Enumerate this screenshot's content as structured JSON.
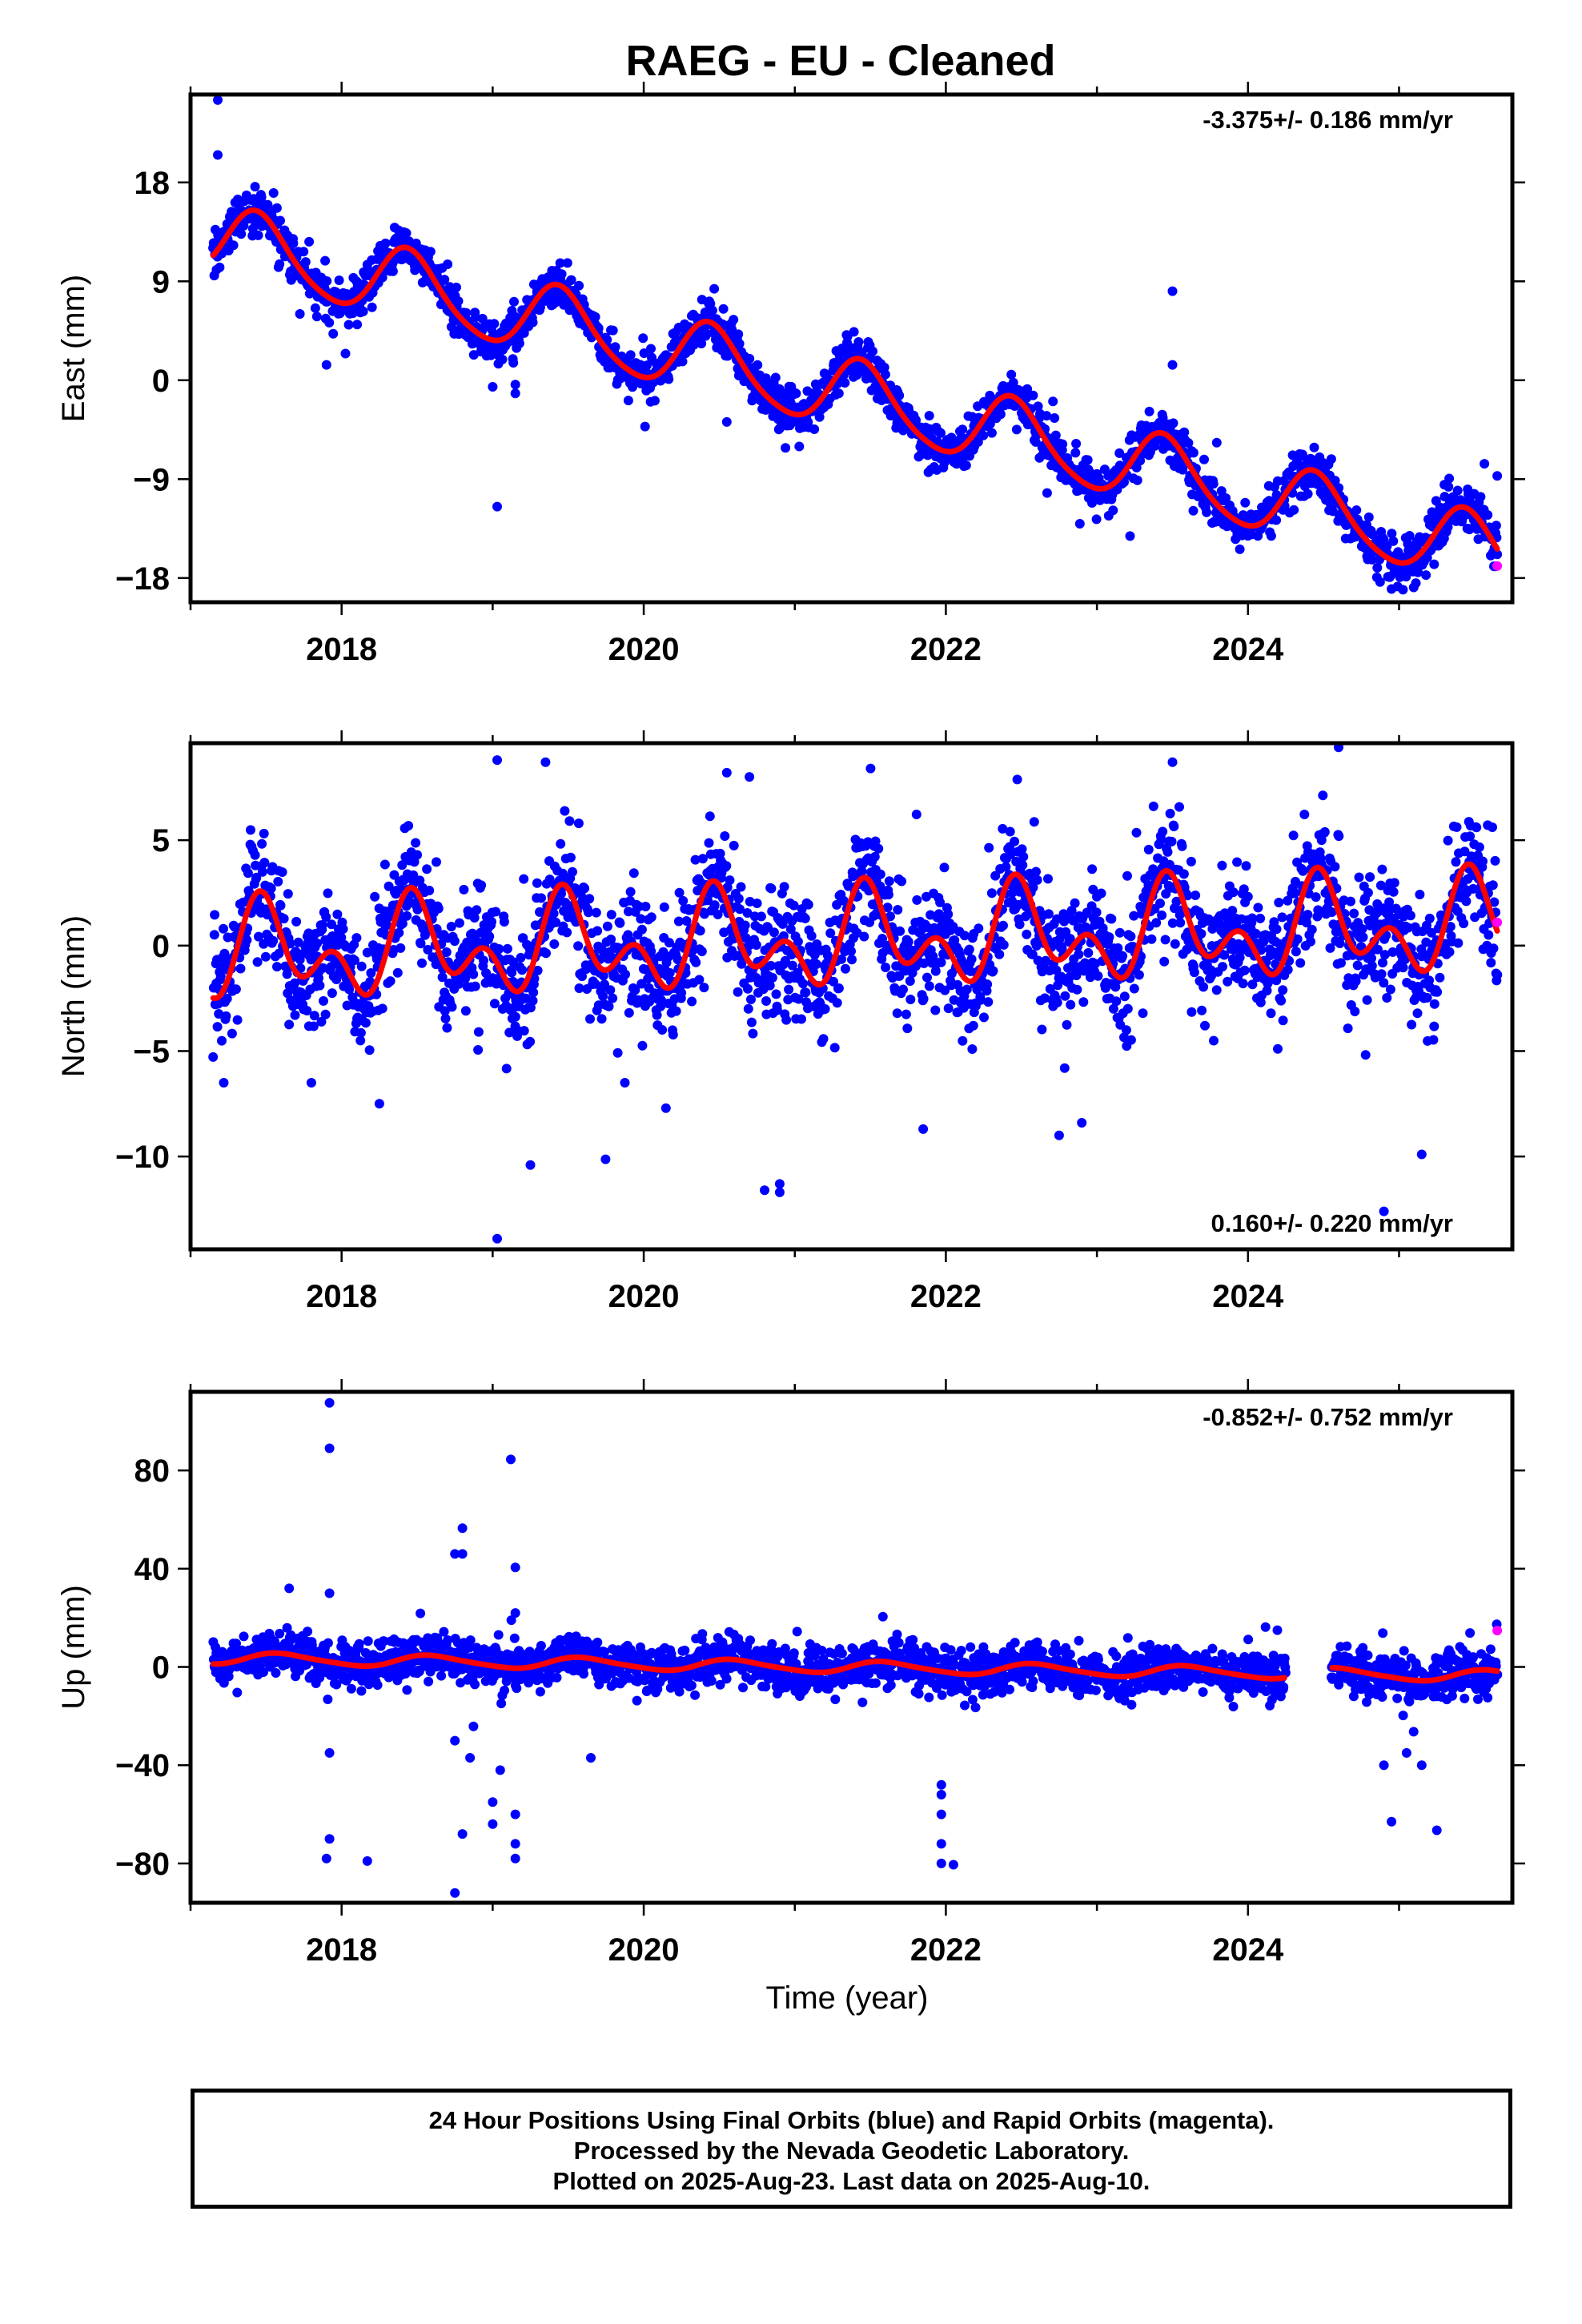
{
  "title": "RAEG  - EU - Cleaned",
  "x_axis_label": "Time (year)",
  "footer": {
    "line1": "24 Hour Positions Using Final Orbits (blue) and Rapid Orbits (magenta).",
    "line2": "Processed by the Nevada Geodetic Laboratory.",
    "line3": "Plotted on 2025-Aug-23. Last data on 2025-Aug-10."
  },
  "colors": {
    "final": "#0000ff",
    "rapid": "#ff00ff",
    "fit": "#ff0000",
    "frame": "#000000"
  },
  "chart_data": [
    {
      "type": "scatter",
      "id": "east",
      "ylabel": "East (mm)",
      "rate_label": "-3.375+/- 0.186 mm/yr",
      "rate_position": "top-right",
      "xlim": [
        2017.0,
        2025.75
      ],
      "ylim": [
        -20.2,
        26.0
      ],
      "x_ticks": [
        2018,
        2020,
        2022,
        2024
      ],
      "x_tick_labels": [
        "2018",
        "2020",
        "2022",
        "2024"
      ],
      "y_ticks": [
        18,
        9,
        0,
        -9,
        -18
      ],
      "y_tick_labels": [
        "18",
        "9",
        "0",
        "−9",
        "−18"
      ],
      "grid": false,
      "model": {
        "start": 2017.15,
        "end": 2025.65,
        "offset": 12.8,
        "rate": -3.375,
        "annual_amp": 3.2,
        "annual_phase_year": 0.45,
        "semiannual_amp": 0.45,
        "semiannual_phase_year": 0.4
      },
      "scatter": {
        "sigma": 1.0,
        "count": 2400
      },
      "outliers": [
        [
          2017.18,
          25.5
        ],
        [
          2017.18,
          20.5
        ],
        [
          2019.03,
          -11.5
        ],
        [
          2019.15,
          -1.2
        ],
        [
          2019.15,
          -0.4
        ],
        [
          2023.5,
          8.1
        ],
        [
          2023.5,
          1.4
        ],
        [
          2020.55,
          -3.8
        ],
        [
          2025.65,
          -8.7
        ],
        [
          2025.3,
          -9.5
        ],
        [
          2024.95,
          -19.0
        ],
        [
          2017.9,
          1.4
        ],
        [
          2019.0,
          -0.6
        ]
      ],
      "rapid": [
        [
          2025.65,
          -16.9
        ]
      ]
    },
    {
      "type": "scatter",
      "id": "north",
      "ylabel": "North (mm)",
      "rate_label": "0.160+/- 0.220 mm/yr",
      "rate_position": "bottom-right",
      "xlim": [
        2017.0,
        2025.75
      ],
      "ylim": [
        -14.4,
        9.6
      ],
      "x_ticks": [
        2018,
        2020,
        2022,
        2024
      ],
      "x_tick_labels": [
        "2018",
        "2020",
        "2022",
        "2024"
      ],
      "y_ticks": [
        5,
        0,
        -5,
        -10
      ],
      "y_tick_labels": [
        "5",
        "0",
        "−5",
        "−10"
      ],
      "grid": false,
      "model": {
        "start": 2017.15,
        "end": 2025.65,
        "offset": -0.4,
        "rate": 0.16,
        "annual_amp": 1.55,
        "annual_phase_year": 0.5,
        "semiannual_amp": 1.45,
        "semiannual_phase_year": 0.45
      },
      "scatter": {
        "sigma": 1.4,
        "count": 2400
      },
      "outliers": [
        [
          2017.22,
          -6.5
        ],
        [
          2019.03,
          8.8
        ],
        [
          2019.03,
          -13.9
        ],
        [
          2019.25,
          -10.4
        ],
        [
          2019.35,
          8.7
        ],
        [
          2020.8,
          -11.6
        ],
        [
          2020.9,
          -11.7
        ],
        [
          2020.9,
          -11.3
        ],
        [
          2021.85,
          -8.7
        ],
        [
          2022.75,
          -9.0
        ],
        [
          2022.9,
          -8.4
        ],
        [
          2024.6,
          9.4
        ],
        [
          2024.9,
          -12.6
        ],
        [
          2025.15,
          -9.9
        ],
        [
          2017.8,
          -6.5
        ],
        [
          2018.25,
          -7.5
        ],
        [
          2020.55,
          8.2
        ],
        [
          2023.5,
          8.7
        ],
        [
          2020.7,
          8.0
        ]
      ],
      "rapid": [
        [
          2025.65,
          1.1
        ]
      ]
    },
    {
      "type": "scatter",
      "id": "up",
      "ylabel": "Up (mm)",
      "rate_label": "-0.852+/- 0.752 mm/yr",
      "rate_position": "top-right",
      "xlim": [
        2017.0,
        2025.75
      ],
      "ylim": [
        -96.0,
        112.0
      ],
      "x_ticks": [
        2018,
        2020,
        2022,
        2024
      ],
      "x_tick_labels": [
        "2018",
        "2020",
        "2022",
        "2024"
      ],
      "y_ticks": [
        80,
        40,
        0,
        -40,
        -80
      ],
      "y_tick_labels": [
        "80",
        "40",
        "0",
        "−40",
        "−80"
      ],
      "grid": false,
      "model": {
        "start": 2017.15,
        "end": 2025.65,
        "offset": 3.5,
        "rate": -0.852,
        "annual_amp": 2.3,
        "annual_phase_year": 0.6,
        "semiannual_amp": 0.4,
        "semiannual_phase_year": 0.5
      },
      "gaps": [
        [
          2024.25,
          2024.55
        ]
      ],
      "scatter": {
        "sigma": 4.5,
        "count": 2400
      },
      "outliers": [
        [
          2017.92,
          107.5
        ],
        [
          2017.92,
          89.0
        ],
        [
          2017.92,
          30.0
        ],
        [
          2017.92,
          -35.0
        ],
        [
          2017.92,
          -70.0
        ],
        [
          2017.9,
          -78.0
        ],
        [
          2018.17,
          -79.0
        ],
        [
          2018.75,
          46.0
        ],
        [
          2018.8,
          56.5
        ],
        [
          2018.8,
          46.0
        ],
        [
          2018.75,
          -30.0
        ],
        [
          2018.75,
          -92.0
        ],
        [
          2018.85,
          -37.0
        ],
        [
          2018.8,
          -68.0
        ],
        [
          2019.0,
          -55.0
        ],
        [
          2019.0,
          -64.0
        ],
        [
          2019.05,
          -42.0
        ],
        [
          2019.12,
          84.5
        ],
        [
          2019.15,
          40.5
        ],
        [
          2019.15,
          22.0
        ],
        [
          2019.15,
          -60.0
        ],
        [
          2019.15,
          -72.0
        ],
        [
          2019.15,
          -78.0
        ],
        [
          2019.65,
          -37.0
        ],
        [
          2021.97,
          -48.0
        ],
        [
          2021.97,
          -52.0
        ],
        [
          2021.97,
          -60.0
        ],
        [
          2021.97,
          -72.0
        ],
        [
          2021.97,
          -80.0
        ],
        [
          2022.05,
          -80.5
        ],
        [
          2024.95,
          -63.0
        ],
        [
          2025.25,
          -66.5
        ],
        [
          2025.15,
          -40.0
        ],
        [
          2025.05,
          -35.0
        ],
        [
          2024.9,
          -40.0
        ]
      ],
      "rapid": [
        [
          2025.65,
          14.8
        ]
      ]
    }
  ]
}
